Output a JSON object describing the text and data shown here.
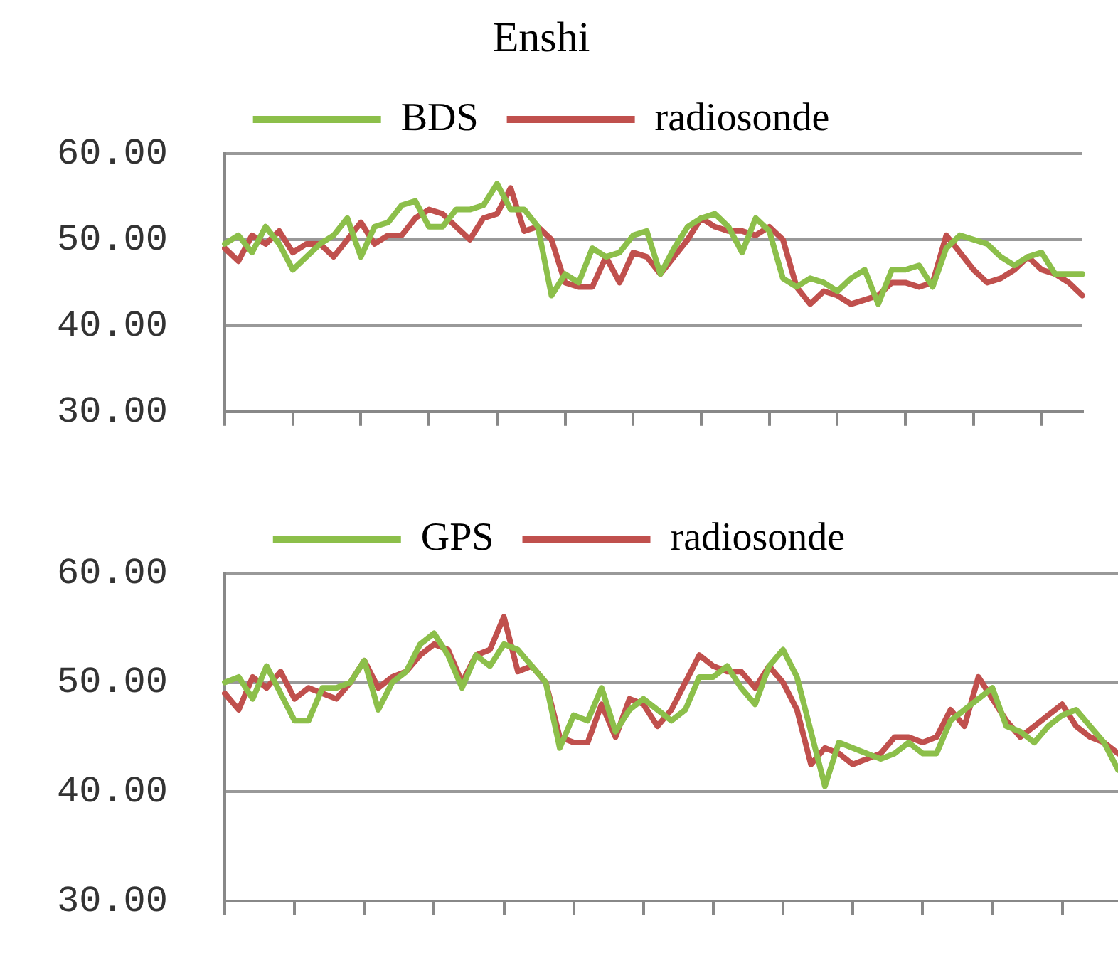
{
  "chart_data": [
    {
      "type": "line",
      "title": "Enshi",
      "categories": [
        null,
        null,
        null,
        null,
        null,
        null,
        null,
        null,
        null,
        null,
        null,
        null,
        null,
        null,
        null,
        null,
        null,
        null,
        null,
        null,
        null,
        null,
        null,
        null,
        null,
        null,
        null,
        null,
        null,
        null,
        null,
        null,
        null,
        null,
        null,
        null,
        null,
        null,
        null,
        null,
        null,
        null,
        null,
        null,
        null,
        null,
        null,
        null,
        null,
        null,
        null,
        null,
        null,
        null,
        null,
        null,
        null,
        null,
        null,
        null,
        null,
        null,
        null,
        null
      ],
      "series": [
        {
          "name": "BDS",
          "color": "#8cbf4a",
          "values": [
            49.5,
            50.5,
            48.5,
            51.5,
            49.5,
            46.5,
            48,
            49.5,
            50.5,
            52.5,
            48,
            51.5,
            52,
            54,
            54.5,
            51.5,
            51.5,
            53.5,
            53.5,
            54,
            56.5,
            53.5,
            53.5,
            51.5,
            43.5,
            46,
            45,
            49,
            48,
            48.5,
            50.5,
            51,
            46,
            49,
            51.5,
            52.5,
            53,
            51.5,
            48.5,
            52.5,
            51,
            45.5,
            44.5,
            45.5,
            45,
            44,
            45.5,
            46.5,
            42.5,
            46.5,
            46.5,
            47,
            44.5,
            49,
            50.5,
            50,
            49.5,
            48,
            47,
            48,
            48.5,
            46,
            46,
            46
          ]
        },
        {
          "name": "radiosonde",
          "color": "#c0504d",
          "values": [
            49,
            47.5,
            50.5,
            49.5,
            51,
            48.5,
            49.5,
            49.5,
            48,
            50,
            52,
            49.5,
            50.5,
            50.5,
            52.5,
            53.5,
            53,
            51.5,
            50,
            52.5,
            53,
            56,
            51,
            51.5,
            50,
            45,
            44.5,
            44.5,
            48,
            45,
            48.5,
            48,
            46,
            48,
            50,
            52.5,
            51.5,
            51,
            51,
            50.5,
            51.5,
            50,
            44.5,
            42.5,
            44,
            43.5,
            42.5,
            43,
            43.5,
            45,
            45,
            44.5,
            45,
            50.5,
            48.5,
            46.5,
            45,
            45.5,
            46.5,
            48,
            46.5,
            46,
            45,
            43.5
          ]
        }
      ],
      "ylim": [
        30,
        60
      ],
      "yticks": [
        {
          "value": 30,
          "label": "30.00"
        },
        {
          "value": 40,
          "label": "40.00"
        },
        {
          "value": 50,
          "label": "50.00"
        },
        {
          "value": 60,
          "label": "60.00"
        }
      ],
      "grid": "y",
      "legend": "top",
      "tick_labels": "y",
      "marker": "none"
    },
    {
      "type": "line",
      "categories": [
        null,
        null,
        null,
        null,
        null,
        null,
        null,
        null,
        null,
        null,
        null,
        null,
        null,
        null,
        null,
        null,
        null,
        null,
        null,
        null,
        null,
        null,
        null,
        null,
        null,
        null,
        null,
        null,
        null,
        null,
        null,
        null,
        null,
        null,
        null,
        null,
        null,
        null,
        null,
        null,
        null,
        null,
        null,
        null,
        null,
        null,
        null,
        null,
        null,
        null,
        null,
        null,
        null,
        null,
        null,
        null,
        null,
        null,
        null,
        null,
        null,
        null,
        null,
        null,
        null
      ],
      "series": [
        {
          "name": "GPS",
          "color": "#8cbf4a",
          "values": [
            50,
            50.5,
            48.5,
            51.5,
            49,
            46.5,
            46.5,
            49.5,
            49.5,
            50,
            52,
            47.5,
            50,
            51,
            53.5,
            54.5,
            52.5,
            49.5,
            52.5,
            51.5,
            53.5,
            53,
            51.5,
            50,
            44,
            47,
            46.5,
            49.5,
            45.5,
            47.5,
            48.5,
            47.5,
            46.5,
            47.5,
            50.5,
            50.5,
            51.5,
            49.5,
            48,
            51.5,
            53,
            50.5,
            45.5,
            40.5,
            44.5,
            44,
            43.5,
            43,
            43.5,
            44.5,
            43.5,
            43.5,
            46.5,
            47.5,
            48.5,
            49.5,
            46,
            45.5,
            44.5,
            46,
            47,
            47.5,
            46,
            44.5,
            42
          ]
        },
        {
          "name": "radiosonde",
          "color": "#c0504d",
          "values": [
            49,
            47.5,
            50.5,
            49.5,
            51,
            48.5,
            49.5,
            49,
            48.5,
            50,
            52,
            49.5,
            50.5,
            51,
            52.5,
            53.5,
            53,
            50,
            52.5,
            53,
            56,
            51,
            51.5,
            50,
            45,
            44.5,
            44.5,
            48,
            45,
            48.5,
            48,
            46,
            47.5,
            50,
            52.5,
            51.5,
            51,
            51,
            49.5,
            51.5,
            50,
            47.5,
            42.5,
            44,
            43.5,
            42.5,
            43,
            43.5,
            45,
            45,
            44.5,
            45,
            47.5,
            46,
            50.5,
            48.5,
            46.5,
            45,
            46,
            47,
            48,
            46,
            45,
            44.5,
            43.5
          ]
        }
      ],
      "ylim": [
        30,
        60
      ],
      "yticks": [
        {
          "value": 30,
          "label": "30.00"
        },
        {
          "value": 40,
          "label": "40.00"
        },
        {
          "value": 50,
          "label": "50.00"
        },
        {
          "value": 60,
          "label": "60.00"
        }
      ],
      "grid": "y",
      "legend": "top",
      "tick_labels": "y",
      "marker": "none"
    }
  ]
}
